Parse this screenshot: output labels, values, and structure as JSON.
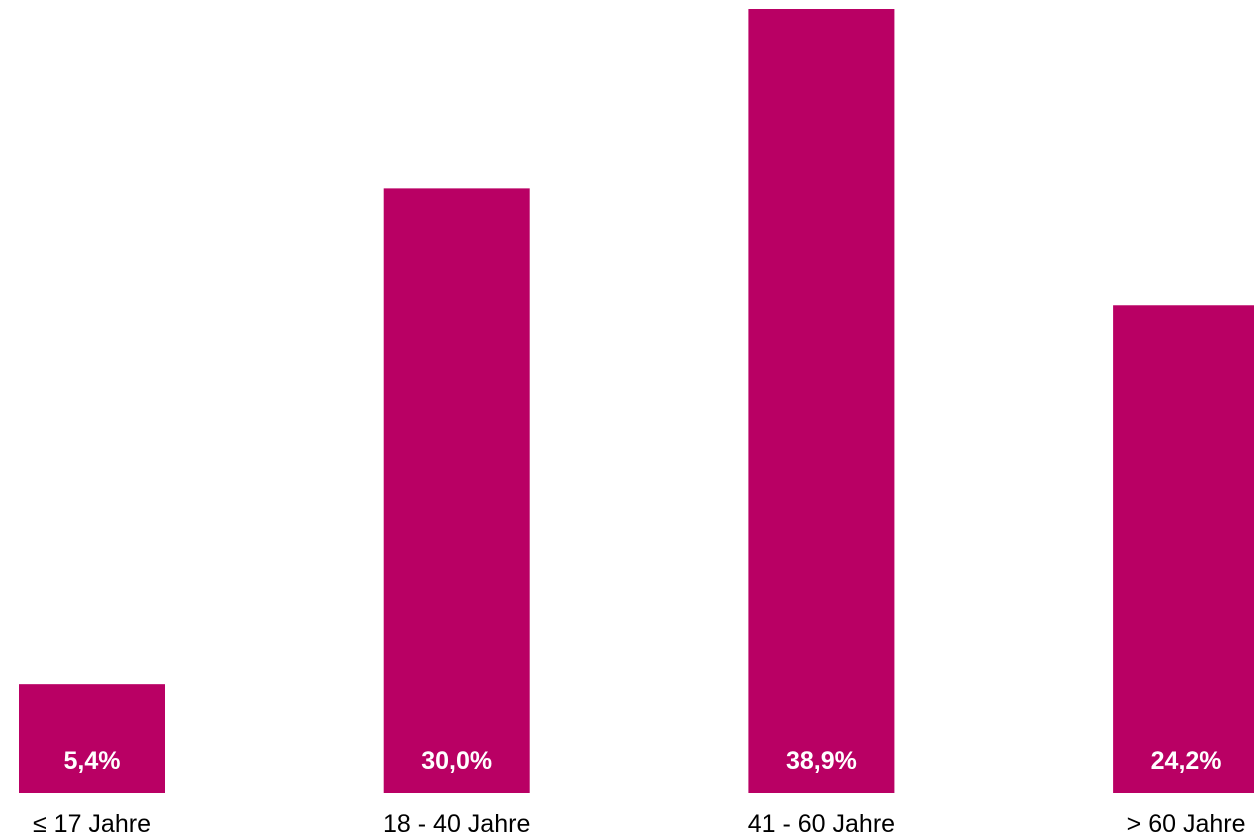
{
  "chart_data": {
    "type": "bar",
    "categories": [
      "≤ 17 Jahre",
      "18 - 40 Jahre",
      "41 - 60 Jahre",
      "> 60 Jahre"
    ],
    "values": [
      5.4,
      30.0,
      38.9,
      24.2
    ],
    "value_labels": [
      "5,4%",
      "30,0%",
      "38,9%",
      "24,2%"
    ],
    "title": "",
    "xlabel": "",
    "ylabel": "",
    "ylim": [
      0,
      38.9
    ],
    "grid": false,
    "legend": "none",
    "bar_color": "#b90064",
    "label_color": "#ffffff"
  }
}
